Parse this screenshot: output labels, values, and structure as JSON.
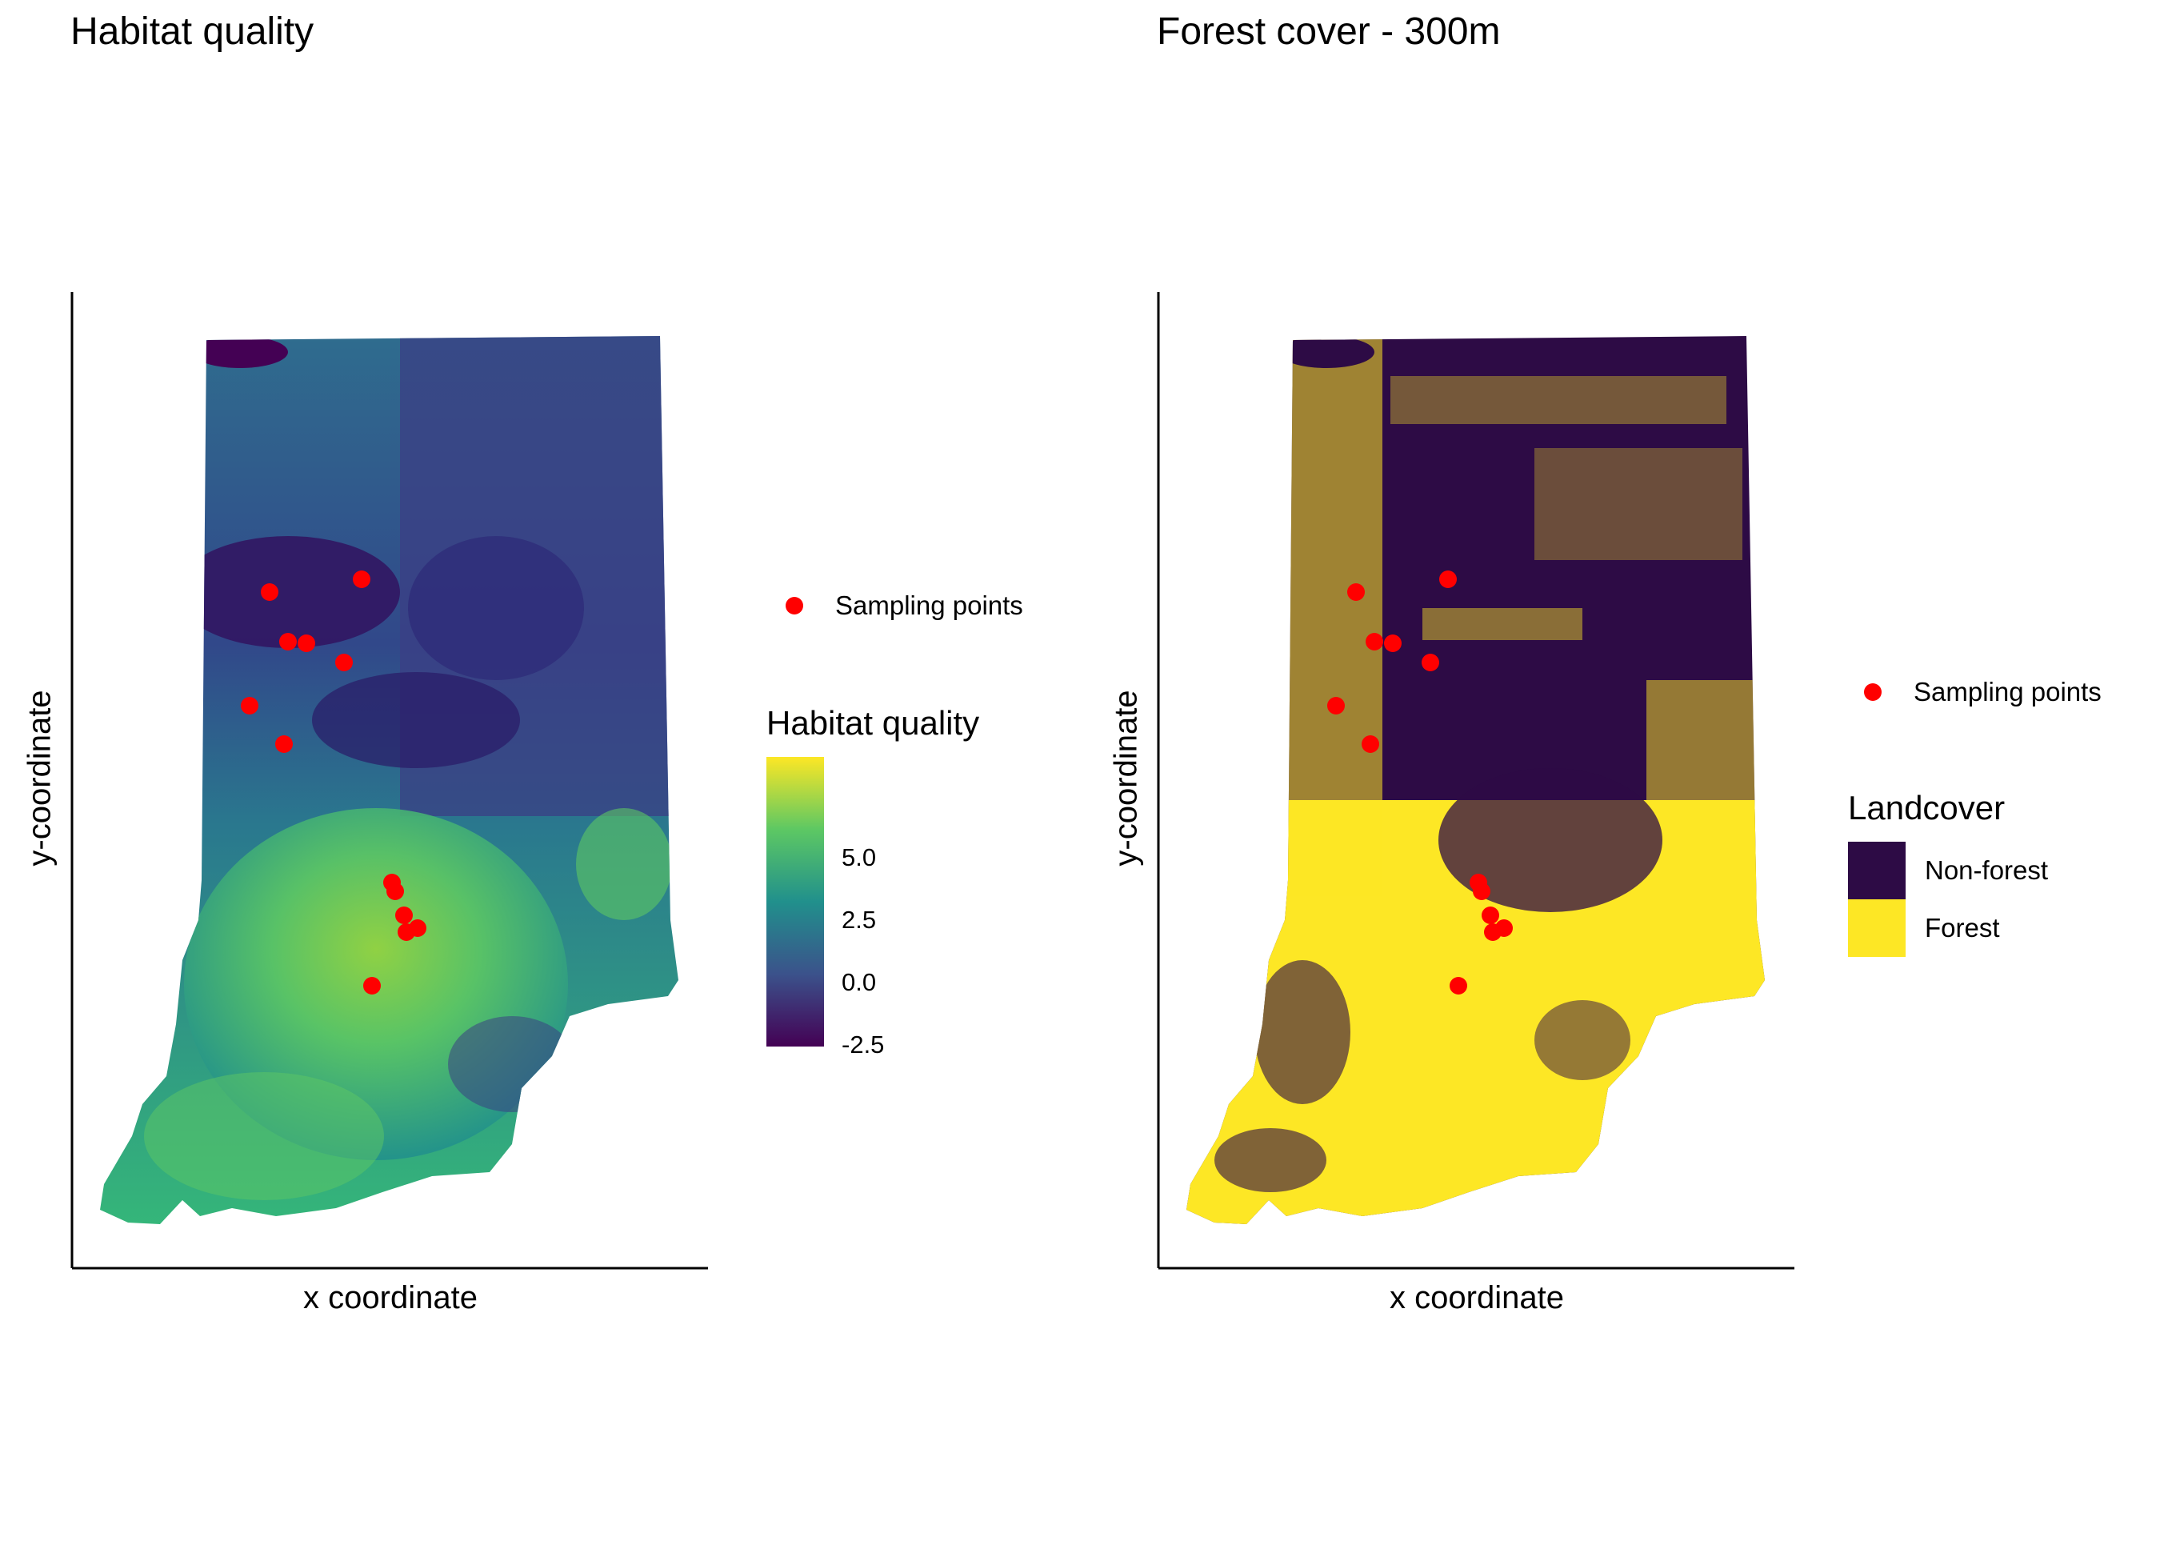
{
  "panels": [
    {
      "title": "Habitat quality",
      "xlabel": "x coordinate",
      "ylabel": "y-coordinate",
      "map_type": "continuous raster (viridis)",
      "points_legend": "Sampling points",
      "colorbar": {
        "title": "Habitat quality",
        "ticks": [
          "5.0",
          "2.5",
          "0.0",
          "-2.5"
        ],
        "tick_values": [
          5.0,
          2.5,
          0.0,
          -2.5
        ],
        "range": [
          -4.5,
          7.0
        ],
        "colors": [
          "#440154",
          "#3b528b",
          "#21908c",
          "#5dc863",
          "#fde725"
        ]
      }
    },
    {
      "title": "Forest cover - 300m",
      "xlabel": "x coordinate",
      "ylabel": "y-coordinate",
      "map_type": "binary raster",
      "points_legend": "Sampling points",
      "landcover": {
        "title": "Landcover",
        "classes": [
          {
            "label": "Non-forest",
            "color": "#2d0b45"
          },
          {
            "label": "Forest",
            "color": "#fde725"
          }
        ]
      }
    }
  ],
  "point_color": "#ff0000"
}
